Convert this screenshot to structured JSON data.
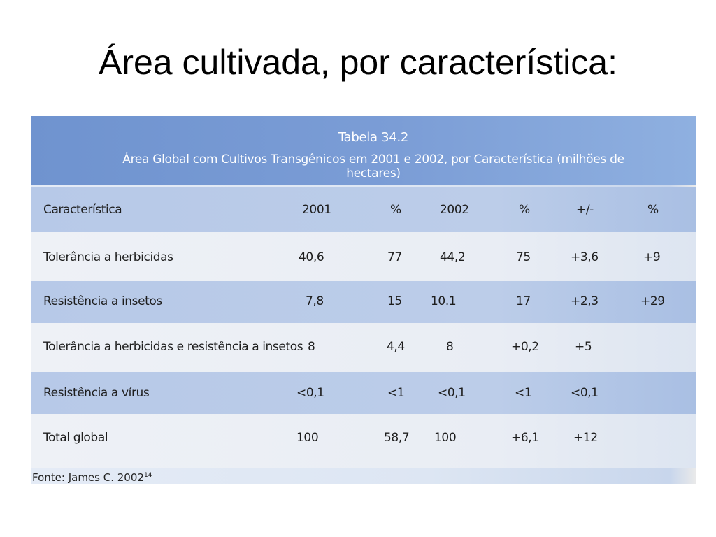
{
  "slide": {
    "title": "Área cultivada, por característica:"
  },
  "table": {
    "caption_number": "Tabela 34.2",
    "caption_title": "Área Global com Cultivos Transgênicos em 2001 e 2002, por Característica (milhões de hectares)",
    "header": {
      "label": "Característica",
      "c1": "2001",
      "c2": "%",
      "c3": "2002",
      "c4": "%",
      "c5": "+/-",
      "c6": "%"
    },
    "rows": [
      {
        "label": "Tolerância a herbicidas",
        "c1": "40,6",
        "c2": "77",
        "c3": "44,2",
        "c4": "75",
        "c5": "+3,6",
        "c6": "+9"
      },
      {
        "label": "Resistência a insetos",
        "c1": "7,8",
        "c2": "15",
        "c3": "10.1",
        "c4": "17",
        "c5": "+2,3",
        "c6": "+29"
      },
      {
        "label": "Tolerância a herbicidas e resistência a insetos",
        "c1": "8",
        "c2": "4,4",
        "c3": "8",
        "c4": "+0,2",
        "c5": "+5",
        "c6": ""
      },
      {
        "label": "Resistência a vírus",
        "c1": "<0,1",
        "c2": "<1",
        "c3": "<0,1",
        "c4": "<1",
        "c5": "<0,1",
        "c6": ""
      },
      {
        "label": "Total global",
        "c1": "100",
        "c2": "58,7",
        "c3": "100",
        "c4": "+6,1",
        "c5": "+12",
        "c6": ""
      }
    ],
    "source_text": "Fonte: James C. 2002",
    "source_ref": "14"
  }
}
